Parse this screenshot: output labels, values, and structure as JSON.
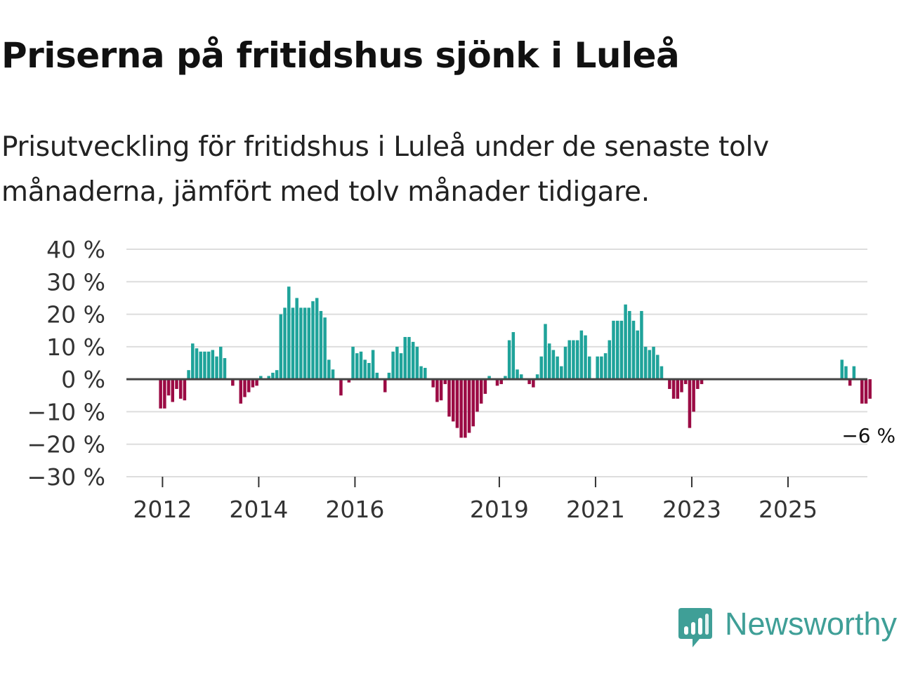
{
  "title": "Priserna på fritidshus sjönk i Luleå",
  "subtitle": "Prisutveckling för fritidshus i Luleå under de senaste tolv månaderna, jämfört med tolv månader tidigare.",
  "brand": {
    "name": "Newsworthy",
    "color": "#3f9f97",
    "icon": "newsworthy-chart-icon"
  },
  "colors": {
    "positive": "#1fa39a",
    "negative": "#9b0b44",
    "grid": "#dddddd",
    "zero": "#444444"
  },
  "chart_data": {
    "type": "bar",
    "title": "Priserna på fritidshus sjönk i Luleå",
    "xlabel": "",
    "ylabel": "",
    "ylim": [
      -30,
      40
    ],
    "y_ticks": [
      40,
      30,
      20,
      10,
      0,
      -10,
      -20,
      -30
    ],
    "y_tick_labels": [
      "40 %",
      "30 %",
      "20 %",
      "10 %",
      "0 %",
      "−10 %",
      "−20 %",
      "−30 %"
    ],
    "x_tick_labels": [
      "2012",
      "2014",
      "2016",
      "2019",
      "2021",
      "2023",
      "2025"
    ],
    "x_tick_years": [
      2012,
      2014,
      2016,
      2019,
      2021,
      2023,
      2025
    ],
    "x_range": [
      2011.25,
      2026.65
    ],
    "start": 2011.96,
    "step": 0.0833,
    "values": [
      -9,
      -9,
      -5,
      -7,
      -3,
      -6,
      -6.5,
      2.8,
      11,
      9.5,
      8.5,
      8.5,
      8.5,
      9,
      7,
      10,
      6.5,
      0,
      -2,
      0,
      -7.5,
      -5.5,
      -4,
      -2.5,
      -2,
      1,
      0,
      1,
      2,
      2.8,
      20,
      22,
      28.5,
      22,
      25,
      22,
      22,
      22,
      24,
      25,
      21,
      19,
      6,
      3,
      0,
      -5,
      0,
      -1,
      10,
      8,
      8.5,
      6,
      5,
      9,
      2,
      0,
      -4,
      2,
      8.5,
      10,
      8,
      13,
      13,
      11.5,
      10,
      4,
      3.5,
      0,
      -2.5,
      -7,
      -6.5,
      -1.5,
      -11.5,
      -13,
      -15,
      -18,
      -18,
      -16.5,
      -14.5,
      -10,
      -7.5,
      -4.5,
      1,
      0,
      -2,
      -1.5,
      1,
      12,
      14.5,
      3,
      1.5,
      0,
      -1.5,
      -2.5,
      1.5,
      7,
      17,
      11,
      9,
      7,
      4,
      10,
      12,
      12,
      12,
      15,
      13.5,
      7,
      0,
      7,
      7,
      8,
      12,
      18,
      18,
      18,
      23,
      21,
      18,
      15,
      21,
      10,
      9,
      10,
      7.5,
      4,
      0,
      -3,
      -6,
      -6,
      -4,
      -1.5,
      -15,
      -10,
      -3,
      -1.5,
      0,
      0,
      0,
      0,
      0,
      0,
      0,
      0,
      0,
      0,
      0,
      0,
      0,
      0,
      0,
      0,
      0,
      0,
      0,
      0,
      0,
      0,
      0,
      0,
      0,
      0,
      0,
      0,
      0,
      0,
      0,
      0,
      0,
      0,
      6,
      4,
      -2,
      4,
      0,
      -7.5,
      -7.5,
      -6
    ],
    "annotation": {
      "text": "−6 %",
      "value": -6
    }
  }
}
